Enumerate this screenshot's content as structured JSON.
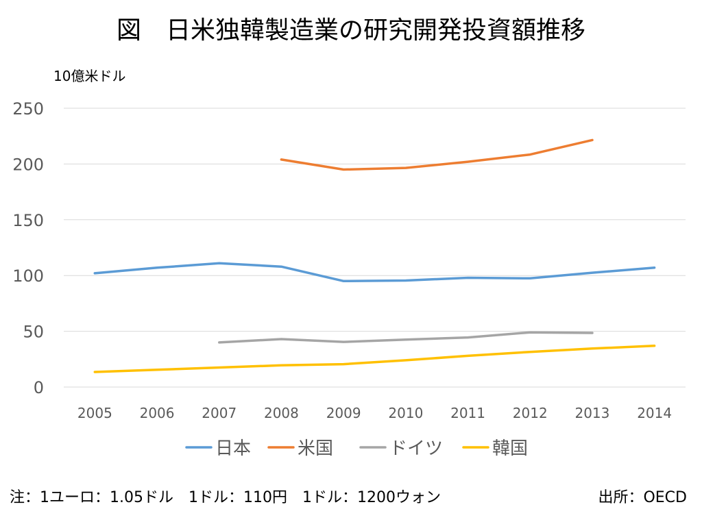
{
  "chart_data": {
    "type": "line",
    "title": "図　日米独韓製造業の研究開発投資額推移",
    "ylabel": "10億米ドル",
    "xlabel": "",
    "categories": [
      "2005",
      "2006",
      "2007",
      "2008",
      "2009",
      "2010",
      "2011",
      "2012",
      "2013",
      "2014"
    ],
    "ylim": [
      0,
      250
    ],
    "yticks": [
      0,
      50,
      100,
      150,
      200,
      250
    ],
    "grid": true,
    "legend_position": "bottom",
    "series": [
      {
        "name": "日本",
        "color": "#5b9bd5",
        "values": [
          102,
          107,
          111,
          108,
          95,
          95.5,
          98,
          97.5,
          102.5,
          107
        ]
      },
      {
        "name": "米国",
        "color": "#ed7d31",
        "values": [
          null,
          null,
          null,
          204,
          195,
          196.5,
          202,
          208.5,
          221.5,
          null
        ]
      },
      {
        "name": "ドイツ",
        "color": "#a5a5a5",
        "values": [
          null,
          null,
          40,
          43,
          40.5,
          42.5,
          44.5,
          49,
          48.5,
          null
        ]
      },
      {
        "name": "韓国",
        "color": "#ffc000",
        "values": [
          13.5,
          15.5,
          17.5,
          19.5,
          20.5,
          24,
          28,
          31.5,
          34.5,
          37
        ]
      }
    ]
  },
  "footer": {
    "note": "注：1ユーロ：1.05ドル　1ドル：110円　1ドル：1200ウォン",
    "source": "出所：OECD"
  }
}
